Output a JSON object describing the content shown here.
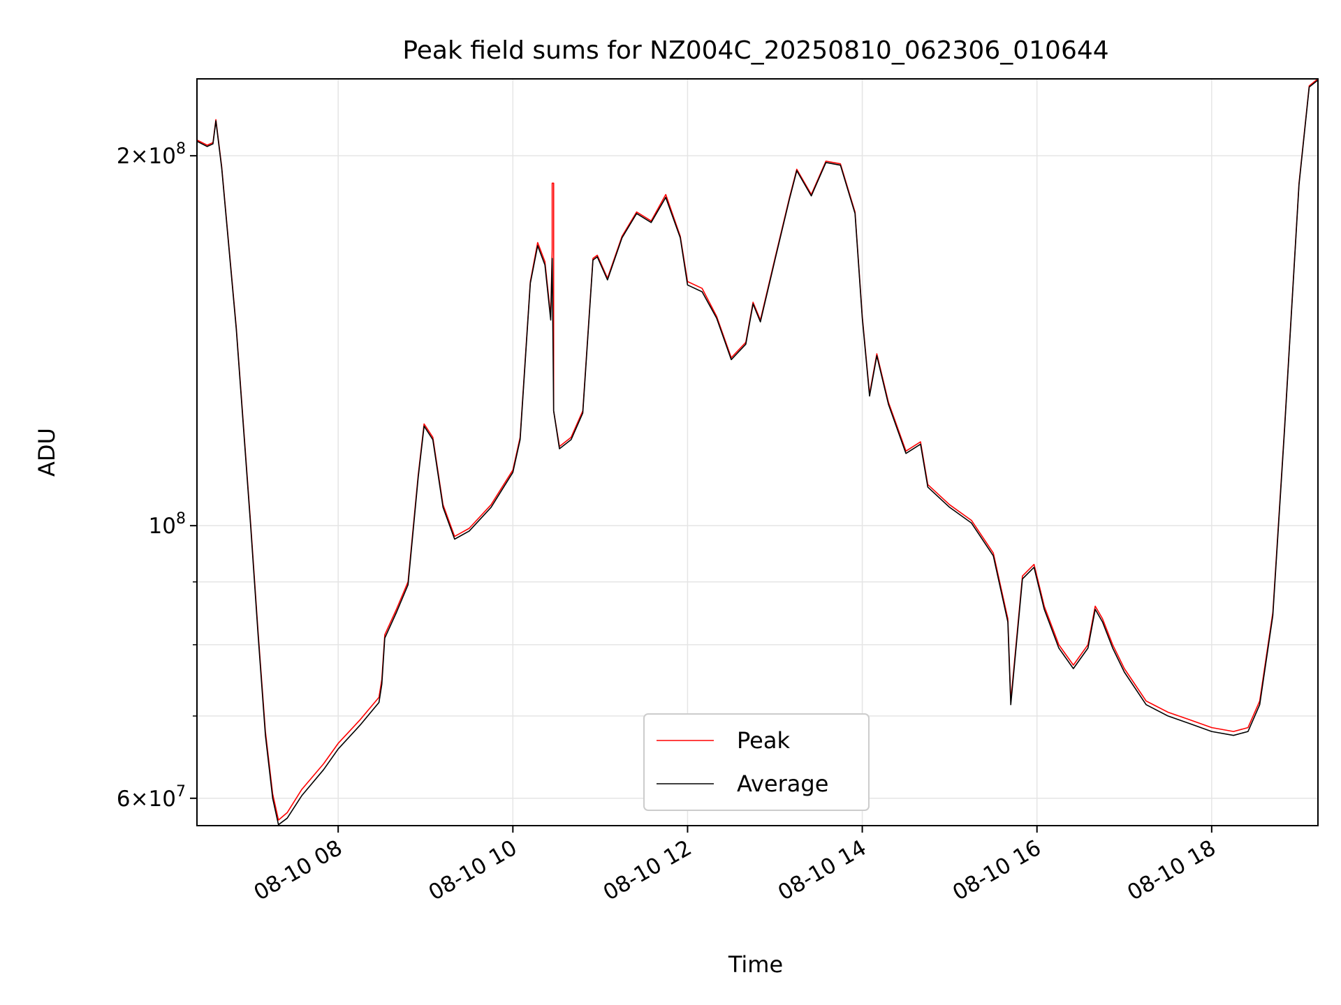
{
  "chart_data": {
    "type": "line",
    "title": "Peak field sums for NZ004C_20250810_062306_010644",
    "xlabel": "Time",
    "ylabel": "ADU",
    "yscale": "log",
    "xlim": [
      "2025-08-10 06:23",
      "2025-08-10 19:13"
    ],
    "ylim": [
      57000000,
      231000000
    ],
    "grid": true,
    "legend_position": "lower center",
    "x_ticks": [
      "2025-08-10 08:00",
      "2025-08-10 10:00",
      "2025-08-10 12:00",
      "2025-08-10 14:00",
      "2025-08-10 16:00",
      "2025-08-10 18:00"
    ],
    "x_tick_labels": [
      "08-10 08",
      "08-10 10",
      "08-10 12",
      "08-10 14",
      "08-10 16",
      "08-10 18"
    ],
    "y_major_ticks": [
      {
        "value": 60000000,
        "mantissa": "6",
        "exponent": "7"
      },
      {
        "value": 100000000,
        "mantissa": "",
        "exponent": "8"
      },
      {
        "value": 200000000,
        "mantissa": "2",
        "exponent": "8"
      }
    ],
    "y_minor_ticks": [
      70000000,
      80000000,
      90000000
    ],
    "series": [
      {
        "name": "Peak",
        "color": "#ff0000",
        "points": [
          [
            "2025-08-10 06:23",
            206000000
          ],
          [
            "2025-08-10 06:30",
            204000000
          ],
          [
            "2025-08-10 06:34",
            205000000
          ],
          [
            "2025-08-10 06:36",
            214000000
          ],
          [
            "2025-08-10 06:40",
            196000000
          ],
          [
            "2025-08-10 06:50",
            145000000
          ],
          [
            "2025-08-10 07:00",
            100000000
          ],
          [
            "2025-08-10 07:05",
            82000000
          ],
          [
            "2025-08-10 07:10",
            68000000
          ],
          [
            "2025-08-10 07:15",
            60500000
          ],
          [
            "2025-08-10 07:19",
            57600000
          ],
          [
            "2025-08-10 07:25",
            58400000
          ],
          [
            "2025-08-10 07:35",
            61000000
          ],
          [
            "2025-08-10 07:50",
            64000000
          ],
          [
            "2025-08-10 08:00",
            66500000
          ],
          [
            "2025-08-10 08:15",
            69500000
          ],
          [
            "2025-08-10 08:28",
            72500000
          ],
          [
            "2025-08-10 08:30",
            75000000
          ],
          [
            "2025-08-10 08:32",
            81500000
          ],
          [
            "2025-08-10 08:40",
            85500000
          ],
          [
            "2025-08-10 08:48",
            90000000
          ],
          [
            "2025-08-10 08:55",
            110000000
          ],
          [
            "2025-08-10 08:59",
            121000000
          ],
          [
            "2025-08-10 09:05",
            118000000
          ],
          [
            "2025-08-10 09:12",
            104000000
          ],
          [
            "2025-08-10 09:20",
            98000000
          ],
          [
            "2025-08-10 09:30",
            99500000
          ],
          [
            "2025-08-10 09:45",
            104000000
          ],
          [
            "2025-08-10 10:00",
            111000000
          ],
          [
            "2025-08-10 10:05",
            118000000
          ],
          [
            "2025-08-10 10:12",
            158000000
          ],
          [
            "2025-08-10 10:17",
            170000000
          ],
          [
            "2025-08-10 10:22",
            164000000
          ],
          [
            "2025-08-10 10:26",
            148000000
          ],
          [
            "2025-08-10 10:27",
            168000000
          ],
          [
            "2025-08-10 10:27",
            190000000
          ],
          [
            "2025-08-10 10:28",
            190000000
          ],
          [
            "2025-08-10 10:28",
            124000000
          ],
          [
            "2025-08-10 10:32",
            116000000
          ],
          [
            "2025-08-10 10:40",
            118000000
          ],
          [
            "2025-08-10 10:48",
            124000000
          ],
          [
            "2025-08-10 10:55",
            165000000
          ],
          [
            "2025-08-10 10:58",
            166000000
          ],
          [
            "2025-08-10 11:05",
            159000000
          ],
          [
            "2025-08-10 11:15",
            172000000
          ],
          [
            "2025-08-10 11:25",
            180000000
          ],
          [
            "2025-08-10 11:35",
            177000000
          ],
          [
            "2025-08-10 11:45",
            186000000
          ],
          [
            "2025-08-10 11:55",
            172000000
          ],
          [
            "2025-08-10 12:00",
            158000000
          ],
          [
            "2025-08-10 12:10",
            156000000
          ],
          [
            "2025-08-10 12:20",
            148000000
          ],
          [
            "2025-08-10 12:30",
            137000000
          ],
          [
            "2025-08-10 12:40",
            141000000
          ],
          [
            "2025-08-10 12:45",
            152000000
          ],
          [
            "2025-08-10 12:50",
            147000000
          ],
          [
            "2025-08-10 13:00",
            165000000
          ],
          [
            "2025-08-10 13:10",
            185000000
          ],
          [
            "2025-08-10 13:15",
            195000000
          ],
          [
            "2025-08-10 13:25",
            186000000
          ],
          [
            "2025-08-10 13:35",
            198000000
          ],
          [
            "2025-08-10 13:45",
            197000000
          ],
          [
            "2025-08-10 13:55",
            180000000
          ],
          [
            "2025-08-10 14:00",
            148000000
          ],
          [
            "2025-08-10 14:05",
            128000000
          ],
          [
            "2025-08-10 14:10",
            138000000
          ],
          [
            "2025-08-10 14:18",
            126000000
          ],
          [
            "2025-08-10 14:30",
            115000000
          ],
          [
            "2025-08-10 14:40",
            117000000
          ],
          [
            "2025-08-10 14:45",
            108000000
          ],
          [
            "2025-08-10 15:00",
            104000000
          ],
          [
            "2025-08-10 15:15",
            101000000
          ],
          [
            "2025-08-10 15:30",
            95000000
          ],
          [
            "2025-08-10 15:40",
            84000000
          ],
          [
            "2025-08-10 15:42",
            72000000
          ],
          [
            "2025-08-10 15:50",
            91000000
          ],
          [
            "2025-08-10 15:58",
            93000000
          ],
          [
            "2025-08-10 16:05",
            86000000
          ],
          [
            "2025-08-10 16:15",
            80000000
          ],
          [
            "2025-08-10 16:25",
            77000000
          ],
          [
            "2025-08-10 16:35",
            80000000
          ],
          [
            "2025-08-10 16:40",
            86000000
          ],
          [
            "2025-08-10 16:45",
            84000000
          ],
          [
            "2025-08-10 16:52",
            80000000
          ],
          [
            "2025-08-10 17:00",
            76500000
          ],
          [
            "2025-08-10 17:15",
            72000000
          ],
          [
            "2025-08-10 17:30",
            70500000
          ],
          [
            "2025-08-10 17:45",
            69500000
          ],
          [
            "2025-08-10 18:00",
            68500000
          ],
          [
            "2025-08-10 18:15",
            68000000
          ],
          [
            "2025-08-10 18:25",
            68500000
          ],
          [
            "2025-08-10 18:33",
            72000000
          ],
          [
            "2025-08-10 18:42",
            85000000
          ],
          [
            "2025-08-10 18:50",
            120000000
          ],
          [
            "2025-08-10 19:00",
            190000000
          ],
          [
            "2025-08-10 19:07",
            228000000
          ],
          [
            "2025-08-10 19:13",
            231000000
          ]
        ]
      },
      {
        "name": "Average",
        "color": "#000000",
        "points": [
          [
            "2025-08-10 06:23",
            205500000
          ],
          [
            "2025-08-10 06:30",
            203500000
          ],
          [
            "2025-08-10 06:34",
            204500000
          ],
          [
            "2025-08-10 06:36",
            213500000
          ],
          [
            "2025-08-10 06:40",
            195500000
          ],
          [
            "2025-08-10 06:50",
            144500000
          ],
          [
            "2025-08-10 07:00",
            99500000
          ],
          [
            "2025-08-10 07:05",
            81500000
          ],
          [
            "2025-08-10 07:10",
            67500000
          ],
          [
            "2025-08-10 07:15",
            60000000
          ],
          [
            "2025-08-10 07:19",
            57100000
          ],
          [
            "2025-08-10 07:25",
            57800000
          ],
          [
            "2025-08-10 07:35",
            60300000
          ],
          [
            "2025-08-10 07:50",
            63300000
          ],
          [
            "2025-08-10 08:00",
            65800000
          ],
          [
            "2025-08-10 08:15",
            68800000
          ],
          [
            "2025-08-10 08:28",
            71800000
          ],
          [
            "2025-08-10 08:30",
            74300000
          ],
          [
            "2025-08-10 08:32",
            81000000
          ],
          [
            "2025-08-10 08:40",
            85000000
          ],
          [
            "2025-08-10 08:48",
            89500000
          ],
          [
            "2025-08-10 08:55",
            109500000
          ],
          [
            "2025-08-10 08:59",
            120500000
          ],
          [
            "2025-08-10 09:05",
            117500000
          ],
          [
            "2025-08-10 09:12",
            103500000
          ],
          [
            "2025-08-10 09:20",
            97500000
          ],
          [
            "2025-08-10 09:30",
            99000000
          ],
          [
            "2025-08-10 09:45",
            103500000
          ],
          [
            "2025-08-10 10:00",
            110500000
          ],
          [
            "2025-08-10 10:05",
            117500000
          ],
          [
            "2025-08-10 10:12",
            157500000
          ],
          [
            "2025-08-10 10:17",
            169000000
          ],
          [
            "2025-08-10 10:22",
            163000000
          ],
          [
            "2025-08-10 10:26",
            147000000
          ],
          [
            "2025-08-10 10:27",
            165000000
          ],
          [
            "2025-08-10 10:28",
            124000000
          ],
          [
            "2025-08-10 10:32",
            115500000
          ],
          [
            "2025-08-10 10:40",
            117500000
          ],
          [
            "2025-08-10 10:48",
            123500000
          ],
          [
            "2025-08-10 10:55",
            164500000
          ],
          [
            "2025-08-10 10:58",
            165500000
          ],
          [
            "2025-08-10 11:05",
            158500000
          ],
          [
            "2025-08-10 11:15",
            171500000
          ],
          [
            "2025-08-10 11:25",
            179500000
          ],
          [
            "2025-08-10 11:35",
            176500000
          ],
          [
            "2025-08-10 11:45",
            185000000
          ],
          [
            "2025-08-10 11:55",
            171500000
          ],
          [
            "2025-08-10 12:00",
            157000000
          ],
          [
            "2025-08-10 12:10",
            155000000
          ],
          [
            "2025-08-10 12:20",
            147500000
          ],
          [
            "2025-08-10 12:30",
            136500000
          ],
          [
            "2025-08-10 12:40",
            140500000
          ],
          [
            "2025-08-10 12:45",
            151500000
          ],
          [
            "2025-08-10 12:50",
            146500000
          ],
          [
            "2025-08-10 13:00",
            164500000
          ],
          [
            "2025-08-10 13:10",
            184500000
          ],
          [
            "2025-08-10 13:15",
            194500000
          ],
          [
            "2025-08-10 13:25",
            185500000
          ],
          [
            "2025-08-10 13:35",
            197500000
          ],
          [
            "2025-08-10 13:45",
            196500000
          ],
          [
            "2025-08-10 13:55",
            179500000
          ],
          [
            "2025-08-10 14:00",
            147500000
          ],
          [
            "2025-08-10 14:05",
            127500000
          ],
          [
            "2025-08-10 14:10",
            137500000
          ],
          [
            "2025-08-10 14:18",
            125500000
          ],
          [
            "2025-08-10 14:30",
            114500000
          ],
          [
            "2025-08-10 14:40",
            116500000
          ],
          [
            "2025-08-10 14:45",
            107500000
          ],
          [
            "2025-08-10 15:00",
            103500000
          ],
          [
            "2025-08-10 15:15",
            100500000
          ],
          [
            "2025-08-10 15:30",
            94500000
          ],
          [
            "2025-08-10 15:40",
            83500000
          ],
          [
            "2025-08-10 15:42",
            71500000
          ],
          [
            "2025-08-10 15:50",
            90500000
          ],
          [
            "2025-08-10 15:58",
            92500000
          ],
          [
            "2025-08-10 16:05",
            85500000
          ],
          [
            "2025-08-10 16:15",
            79500000
          ],
          [
            "2025-08-10 16:25",
            76500000
          ],
          [
            "2025-08-10 16:35",
            79500000
          ],
          [
            "2025-08-10 16:40",
            85500000
          ],
          [
            "2025-08-10 16:45",
            83500000
          ],
          [
            "2025-08-10 16:52",
            79500000
          ],
          [
            "2025-08-10 17:00",
            76000000
          ],
          [
            "2025-08-10 17:15",
            71500000
          ],
          [
            "2025-08-10 17:30",
            70000000
          ],
          [
            "2025-08-10 17:45",
            69000000
          ],
          [
            "2025-08-10 18:00",
            68000000
          ],
          [
            "2025-08-10 18:15",
            67500000
          ],
          [
            "2025-08-10 18:25",
            68000000
          ],
          [
            "2025-08-10 18:33",
            71500000
          ],
          [
            "2025-08-10 18:42",
            84500000
          ],
          [
            "2025-08-10 18:50",
            119500000
          ],
          [
            "2025-08-10 19:00",
            189500000
          ],
          [
            "2025-08-10 19:07",
            227500000
          ],
          [
            "2025-08-10 19:13",
            230500000
          ]
        ]
      }
    ]
  }
}
